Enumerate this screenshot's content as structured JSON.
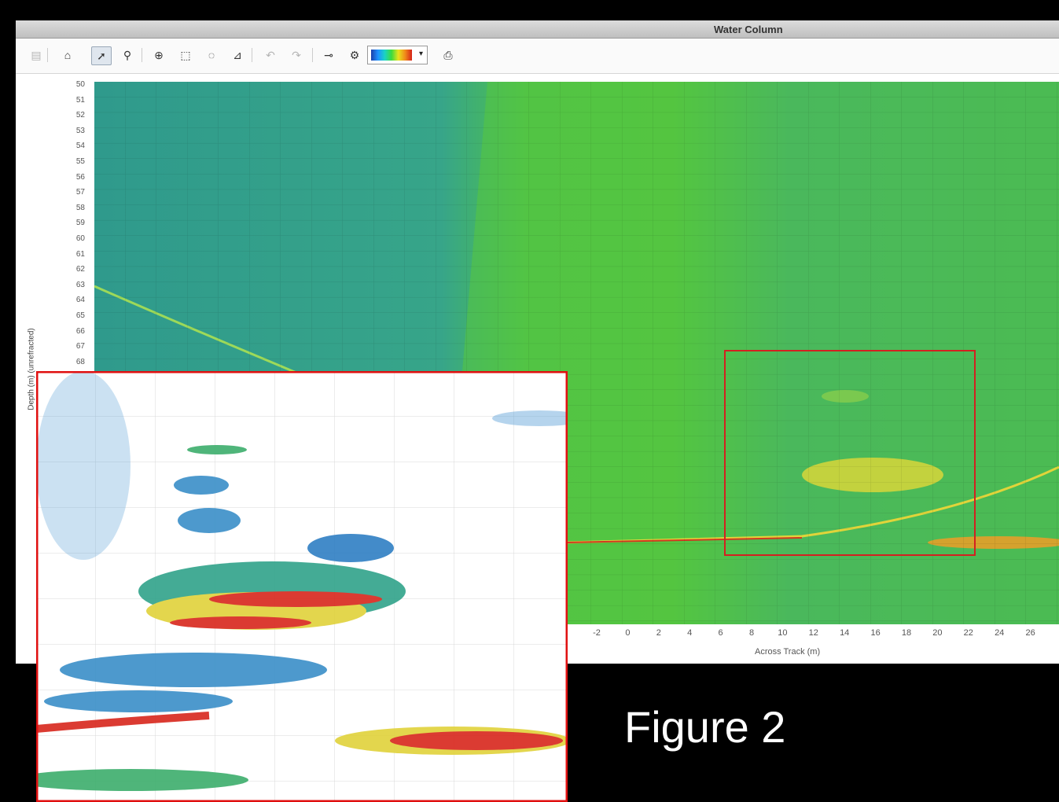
{
  "window": {
    "title": "Water Column"
  },
  "toolbar": {
    "buttons": [
      {
        "name": "save-icon",
        "glyph": "▤",
        "state": "disabled"
      },
      {
        "name": "home-icon",
        "glyph": "⌂",
        "state": "normal"
      },
      {
        "name": "pointer-icon",
        "glyph": "➚",
        "state": "active"
      },
      {
        "name": "search-icon",
        "glyph": "⚲",
        "state": "normal"
      },
      {
        "name": "zoom-in-icon",
        "glyph": "⊕",
        "state": "normal"
      },
      {
        "name": "rect-select-icon",
        "glyph": "⬚",
        "state": "normal"
      },
      {
        "name": "lasso-icon",
        "glyph": "◌",
        "state": "normal"
      },
      {
        "name": "polygon-select-icon",
        "glyph": "⊿",
        "state": "normal"
      },
      {
        "name": "undo-icon",
        "glyph": "↶",
        "state": "disabled"
      },
      {
        "name": "redo-icon",
        "glyph": "↷",
        "state": "disabled"
      },
      {
        "name": "point-tool-icon",
        "glyph": "⊸",
        "state": "normal"
      },
      {
        "name": "settings-icon",
        "glyph": "⚙",
        "state": "normal"
      },
      {
        "name": "export-icon",
        "glyph": "⎙",
        "state": "normal"
      }
    ],
    "colormap_selector": "rainbow"
  },
  "plot": {
    "ylabel": "Depth (m) (unrefracted)",
    "xlabel": "Across Track (m)",
    "y_ticks": [
      "50",
      "51",
      "52",
      "53",
      "54",
      "55",
      "56",
      "57",
      "58",
      "59",
      "60",
      "61",
      "62",
      "63",
      "64",
      "65",
      "66",
      "67",
      "68"
    ],
    "x_ticks": [
      "-2",
      "0",
      "2",
      "4",
      "6",
      "8",
      "10",
      "12",
      "14",
      "16",
      "18",
      "20",
      "22",
      "24",
      "26"
    ]
  },
  "caption": "Figure 2"
}
